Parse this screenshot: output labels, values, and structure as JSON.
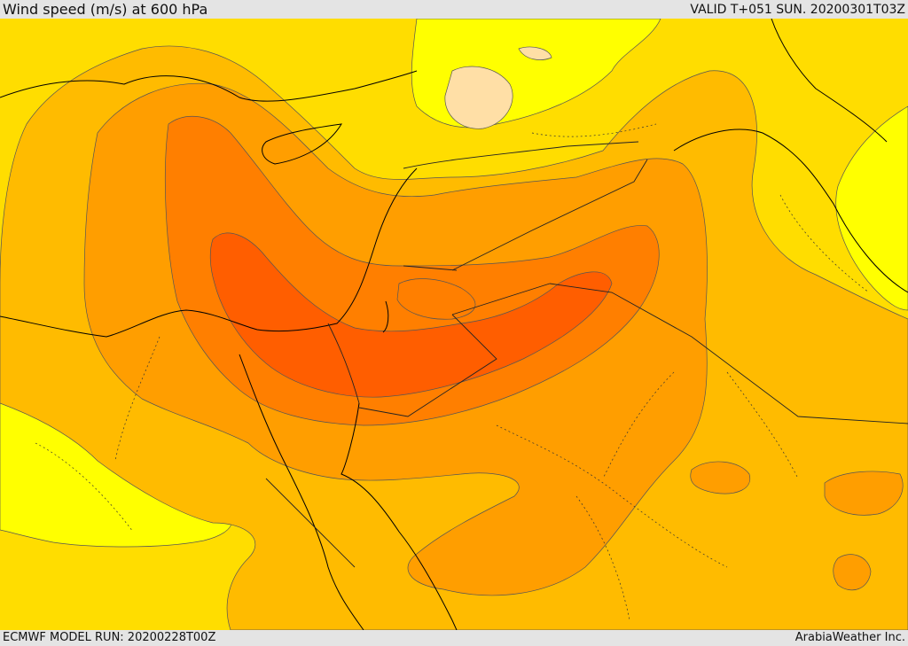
{
  "header": {
    "title": "Wind speed (m/s) at 600 hPa",
    "valid": "VALID T+051 SUN. 20200301T03Z"
  },
  "footer": {
    "model_run": "ECMWF MODEL RUN: 20200228T00Z",
    "credit": "ArabiaWeather Inc."
  },
  "colors": {
    "level_5": "#ffff00",
    "level_10": "#ffdd00",
    "level_15": "#ffbb00",
    "level_20": "#ff9e00",
    "level_25": "#ff7f00",
    "level_30": "#ff5e00",
    "calm": "#ffdfa6"
  }
}
